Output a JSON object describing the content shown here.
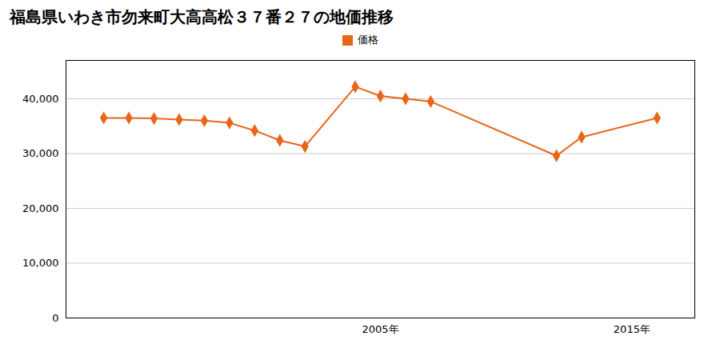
{
  "chart_data": {
    "type": "line",
    "title": "福島県いわき市勿来町大高高松３７番２７の地価推移",
    "x": [
      1994,
      1995,
      1996,
      1997,
      1998,
      1999,
      2000,
      2001,
      2002,
      2004,
      2005,
      2006,
      2007,
      2012,
      2013,
      2016
    ],
    "series": [
      {
        "name": "価格",
        "color": "#e8651a",
        "marker": "diamond",
        "values": [
          36500,
          36500,
          36400,
          36200,
          36000,
          35600,
          34200,
          32400,
          31300,
          42200,
          40500,
          40000,
          39500,
          29600,
          33000,
          36500
        ]
      }
    ],
    "xlim": [
      1992.5,
      2017.5
    ],
    "xticks": [
      {
        "value": 2005,
        "label": "2005年"
      },
      {
        "value": 2015,
        "label": "2015年"
      }
    ],
    "ylim": [
      0,
      47000
    ],
    "yticks": [
      0,
      {
        "value": 10000,
        "label": "10,000"
      },
      {
        "value": 20000,
        "label": "20,000"
      },
      {
        "value": 30000,
        "label": "30,000"
      },
      {
        "value": 40000,
        "label": "40,000"
      }
    ],
    "grid": "y",
    "legend": "top"
  }
}
